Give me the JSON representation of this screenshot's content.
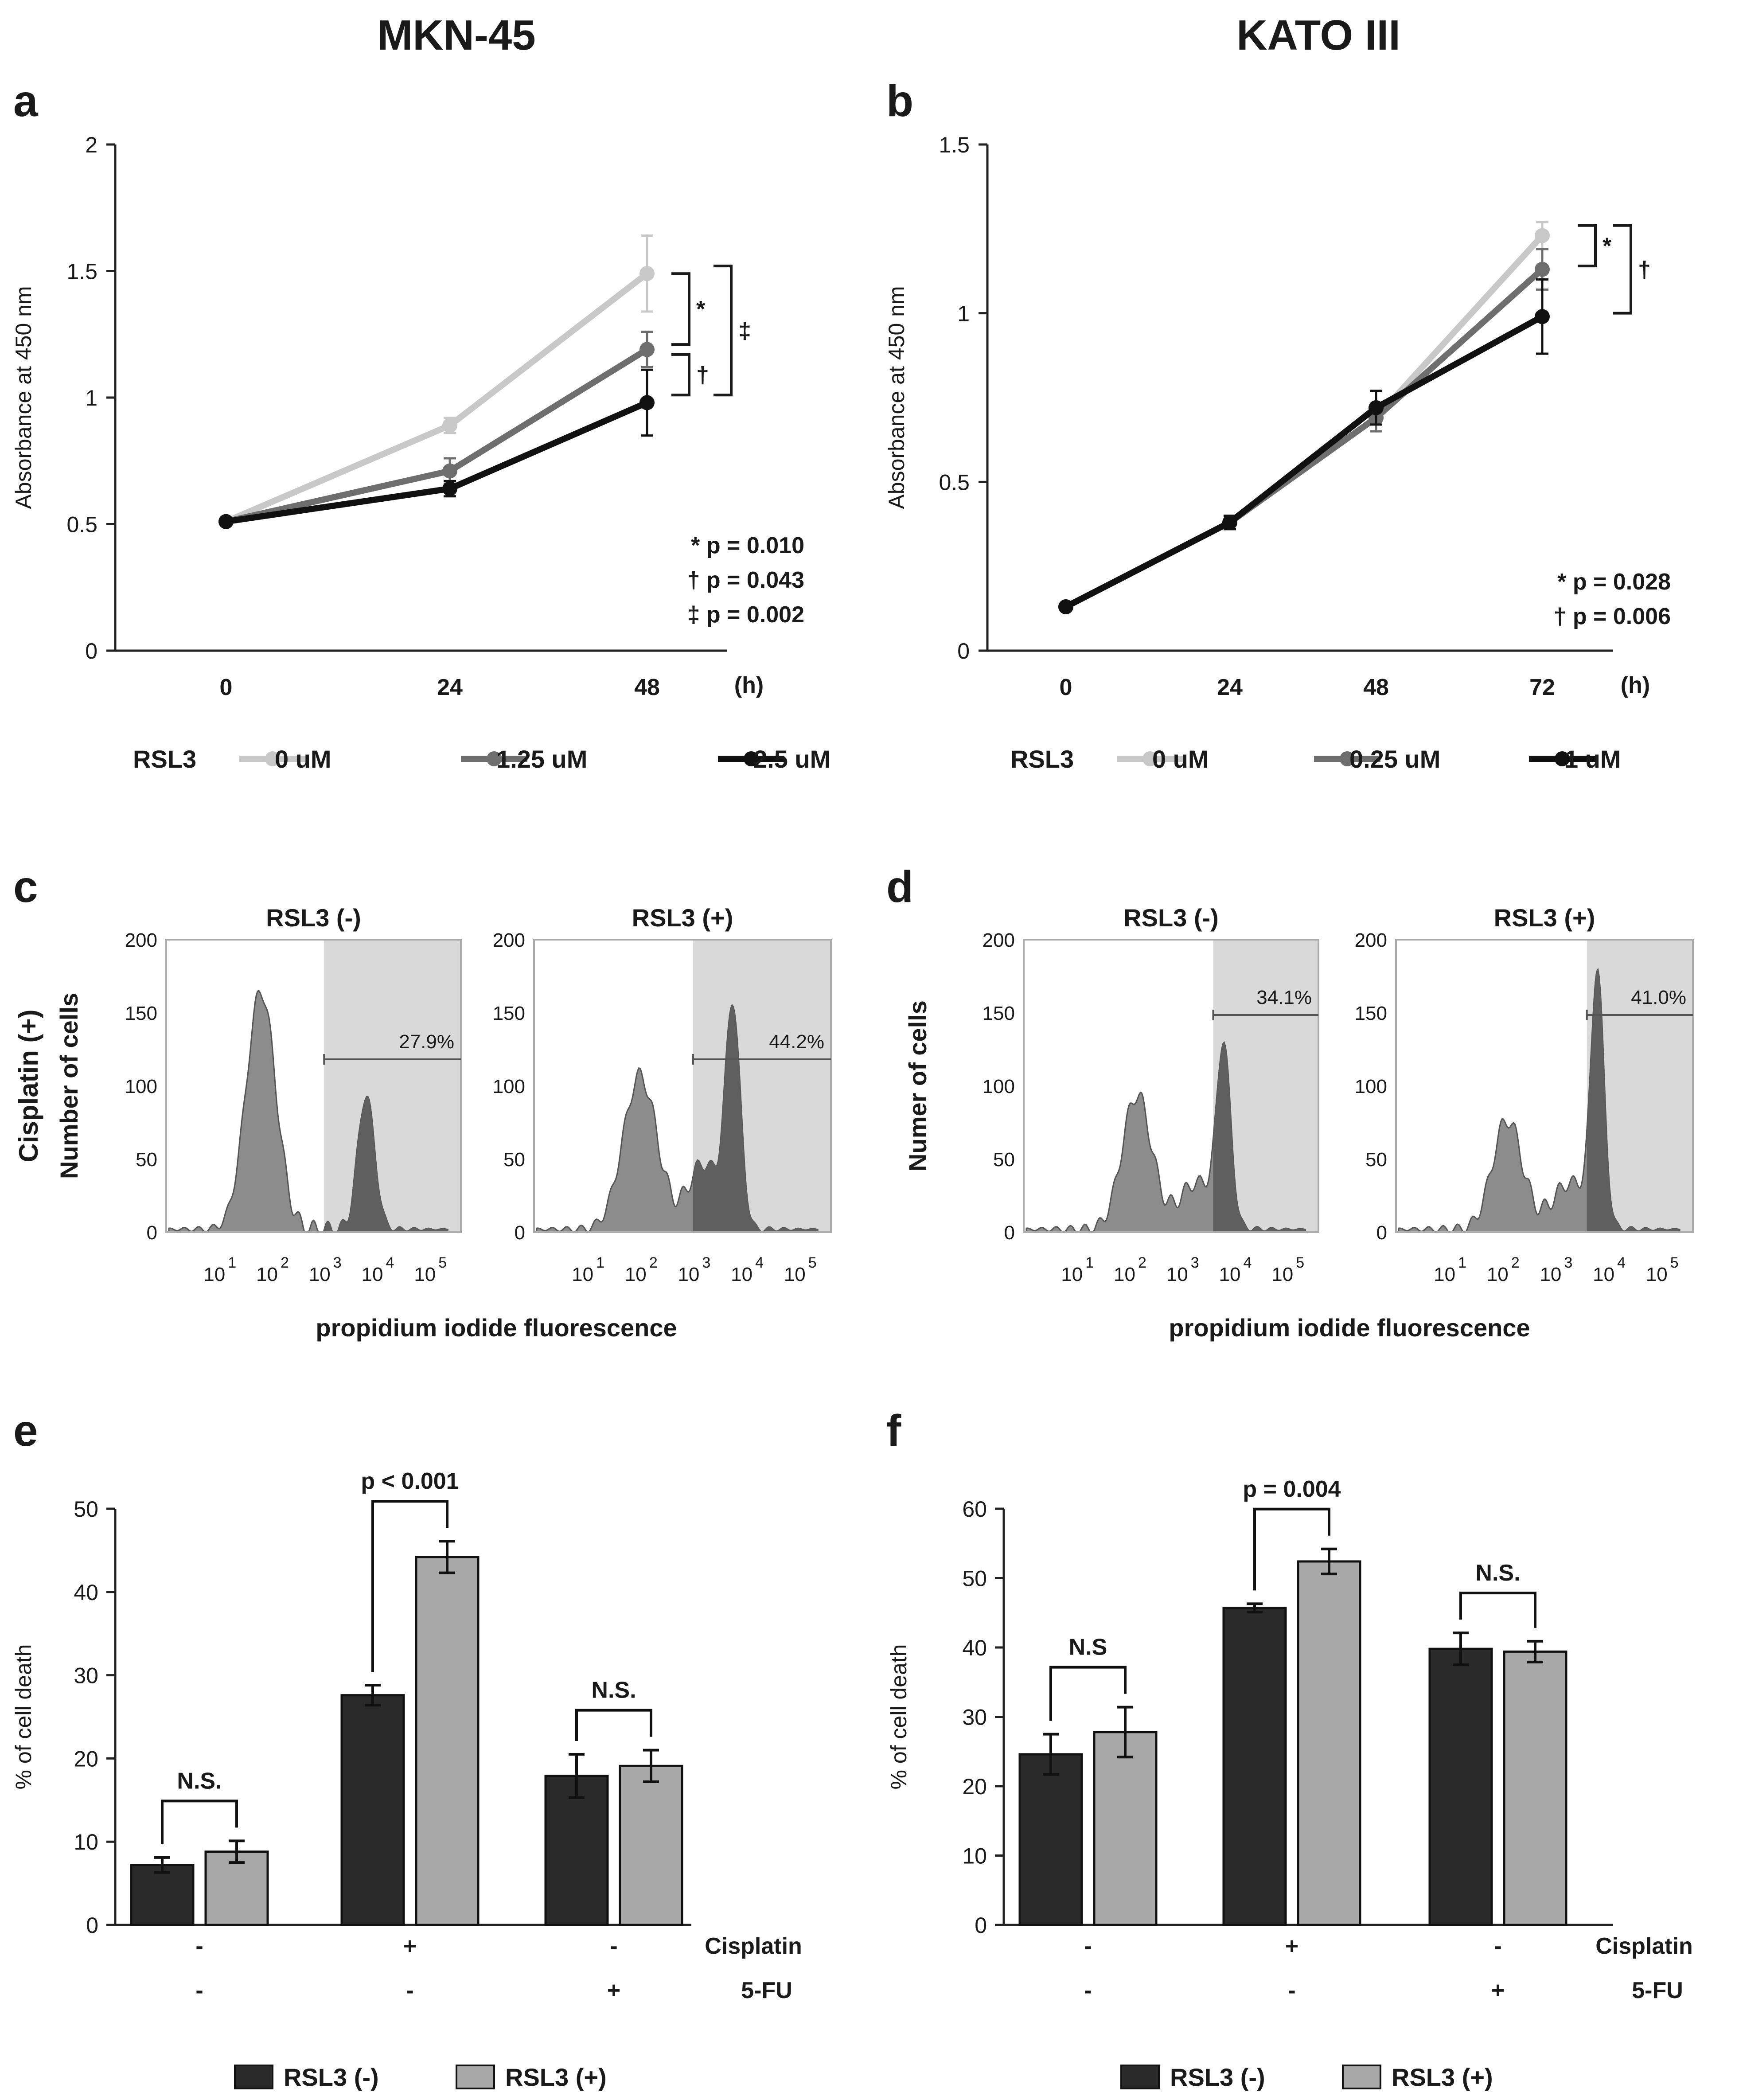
{
  "titles": {
    "left": "MKN-45",
    "right": "KATO III"
  },
  "panel_labels": {
    "a": "a",
    "b": "b",
    "c": "c",
    "d": "d",
    "e": "e",
    "f": "f"
  },
  "colors": {
    "light": "#c8c8c8",
    "mid": "#6e6e6e",
    "dark": "#111111",
    "gate": "#d9d9d9",
    "hist": "#8c8c8c",
    "hist_dark": "#5f5f5f"
  },
  "chart_data": [
    {
      "id": "a",
      "type": "line",
      "ylabel": "Absorbance at 450 nm",
      "xunit": "(h)",
      "x": [
        0,
        24,
        48
      ],
      "x_ticks": [
        "0",
        "24",
        "48"
      ],
      "ylim": [
        0,
        2
      ],
      "y_ticks": [
        "0",
        "0.5",
        "1",
        "1.5",
        "2"
      ],
      "legend_title": "RSL3",
      "series": [
        {
          "name": "0 uM",
          "values": [
            0.51,
            0.89,
            1.49
          ],
          "err": [
            0.01,
            0.03,
            0.15
          ]
        },
        {
          "name": "1.25 uM",
          "values": [
            0.51,
            0.71,
            1.19
          ],
          "err": [
            0.01,
            0.05,
            0.07
          ]
        },
        {
          "name": "2.5 uM",
          "values": [
            0.51,
            0.64,
            0.98
          ],
          "err": [
            0.01,
            0.03,
            0.13
          ]
        }
      ],
      "brackets": [
        "*",
        "†",
        "‡"
      ],
      "stats": [
        "* p = 0.010",
        "† p = 0.043",
        "‡ p = 0.002"
      ]
    },
    {
      "id": "b",
      "type": "line",
      "ylabel": "Absorbance at 450 nm",
      "xunit": "(h)",
      "x": [
        0,
        24,
        48,
        72
      ],
      "x_ticks": [
        "0",
        "24",
        "48",
        "72"
      ],
      "ylim": [
        0,
        1.5
      ],
      "y_ticks": [
        "0",
        "0.5",
        "1",
        "1.5"
      ],
      "legend_title": "RSL3",
      "series": [
        {
          "name": "0 uM",
          "values": [
            0.13,
            0.38,
            0.69,
            1.23
          ],
          "err": [
            0.01,
            0.02,
            0.04,
            0.04
          ]
        },
        {
          "name": "0.25 uM",
          "values": [
            0.13,
            0.38,
            0.69,
            1.13
          ],
          "err": [
            0.01,
            0.02,
            0.04,
            0.06
          ]
        },
        {
          "name": "1 uM",
          "values": [
            0.13,
            0.38,
            0.72,
            0.99
          ],
          "err": [
            0.01,
            0.02,
            0.05,
            0.11
          ]
        }
      ],
      "brackets": [
        "*",
        "†"
      ],
      "stats": [
        "* p = 0.028",
        "† p = 0.006"
      ]
    },
    {
      "id": "c",
      "type": "histogram",
      "row_label": "Cisplatin (+)",
      "ylabel": "Number of cells",
      "xlabel": "propidium iodide fluorescence",
      "y_ticks": [
        "0",
        "50",
        "100",
        "150",
        "200"
      ],
      "ylim": [
        0,
        200
      ],
      "x_tick_base": "10",
      "x_tick_exps": [
        "1",
        "2",
        "3",
        "4",
        "5"
      ],
      "plots": [
        {
          "title": "RSL3 (-)",
          "gate_pct": "27.9%",
          "gate_start": 3.0,
          "peaks": [
            [
              1.8,
              163,
              0.28
            ],
            [
              3.8,
              92,
              0.16
            ]
          ]
        },
        {
          "title": "RSL3 (+)",
          "gate_pct": "44.2%",
          "gate_start": 3.0,
          "peaks": [
            [
              2.0,
              105,
              0.32
            ],
            [
              3.75,
              148,
              0.14
            ],
            [
              3.2,
              45,
              0.3
            ]
          ]
        }
      ]
    },
    {
      "id": "d",
      "type": "histogram",
      "ylabel": "Numer of cells",
      "xlabel": "propidium iodide fluorescence",
      "y_ticks": [
        "0",
        "50",
        "100",
        "150",
        "200"
      ],
      "ylim": [
        0,
        200
      ],
      "x_tick_base": "10",
      "x_tick_exps": [
        "1",
        "2",
        "3",
        "4",
        "5"
      ],
      "plots": [
        {
          "title": "RSL3 (-)",
          "gate_pct": "34.1%",
          "gate_start": 3.6,
          "peaks": [
            [
              2.15,
              92,
              0.28
            ],
            [
              3.8,
              118,
              0.13
            ],
            [
              3.3,
              32,
              0.35
            ]
          ]
        },
        {
          "title": "RSL3 (+)",
          "gate_pct": "41.0%",
          "gate_start": 3.6,
          "peaks": [
            [
              2.1,
              75,
              0.28
            ],
            [
              3.8,
              168,
              0.12
            ],
            [
              3.3,
              32,
              0.35
            ]
          ]
        }
      ]
    },
    {
      "id": "e",
      "type": "bar",
      "ylabel": "% of cell death",
      "ylim": [
        0,
        50
      ],
      "y_ticks": [
        "0",
        "10",
        "20",
        "30",
        "40",
        "50"
      ],
      "row1_label": "Cisplatin",
      "row2_label": "5-FU",
      "groups": [
        {
          "row1": "-",
          "row2": "-",
          "values": [
            7.2,
            8.8
          ],
          "err": [
            0.9,
            1.3
          ],
          "sig": "N.S."
        },
        {
          "row1": "+",
          "row2": "-",
          "values": [
            27.6,
            44.2
          ],
          "err": [
            1.2,
            1.9
          ],
          "sig": "p < 0.001"
        },
        {
          "row1": "-",
          "row2": "+",
          "values": [
            17.9,
            19.1
          ],
          "err": [
            2.6,
            1.9
          ],
          "sig": "N.S."
        }
      ],
      "series": [
        {
          "name": "RSL3 (-)"
        },
        {
          "name": "RSL3 (+)"
        }
      ]
    },
    {
      "id": "f",
      "type": "bar",
      "ylabel": "% of cell death",
      "ylim": [
        0,
        60
      ],
      "y_ticks": [
        "0",
        "10",
        "20",
        "30",
        "40",
        "50",
        "60"
      ],
      "row1_label": "Cisplatin",
      "row2_label": "5-FU",
      "groups": [
        {
          "row1": "-",
          "row2": "-",
          "values": [
            24.6,
            27.8
          ],
          "err": [
            2.9,
            3.6
          ],
          "sig": "N.S"
        },
        {
          "row1": "+",
          "row2": "-",
          "values": [
            45.7,
            52.4
          ],
          "err": [
            0.6,
            1.8
          ],
          "sig": "p = 0.004"
        },
        {
          "row1": "-",
          "row2": "+",
          "values": [
            39.8,
            39.4
          ],
          "err": [
            2.3,
            1.5
          ],
          "sig": "N.S."
        }
      ],
      "series": [
        {
          "name": "RSL3 (-)"
        },
        {
          "name": "RSL3 (+)"
        }
      ]
    }
  ]
}
